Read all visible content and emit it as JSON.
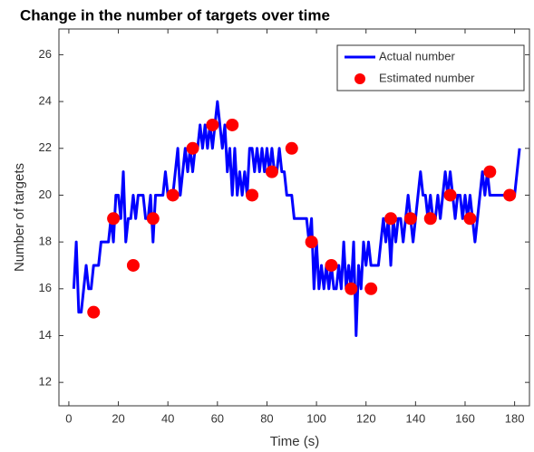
{
  "chart_data": {
    "type": "line",
    "title": "Change in the number of targets over time",
    "xlabel": "Time (s)",
    "ylabel": "Number of targets",
    "xlim": [
      -4,
      186
    ],
    "ylim": [
      11,
      27.1
    ],
    "xticks": [
      0,
      20,
      40,
      60,
      80,
      100,
      120,
      140,
      160,
      180
    ],
    "yticks": [
      12,
      14,
      16,
      18,
      20,
      22,
      24,
      26
    ],
    "grid": false,
    "legend": "upper right",
    "series": [
      {
        "name": "Actual number",
        "color": "#0000ff",
        "style": "line",
        "x": [
          2,
          3,
          4,
          5,
          6,
          7,
          8,
          9,
          10,
          12,
          13,
          16,
          17,
          18,
          19,
          20,
          21,
          22,
          23,
          24,
          25,
          26,
          27,
          28,
          30,
          31,
          32,
          33,
          34,
          35,
          38,
          39,
          40,
          42,
          43,
          44,
          45,
          46,
          47,
          48,
          49,
          50,
          51,
          52,
          53,
          54,
          55,
          56,
          57,
          58,
          59,
          60,
          61,
          62,
          63,
          64,
          65,
          66,
          67,
          68,
          69,
          70,
          71,
          72,
          73,
          74,
          75,
          76,
          77,
          78,
          79,
          80,
          81,
          82,
          83,
          84,
          85,
          86,
          87,
          88,
          89,
          90,
          91,
          92,
          93,
          94,
          95,
          96,
          97,
          98,
          99,
          100,
          101,
          102,
          103,
          104,
          105,
          106,
          107,
          108,
          109,
          110,
          111,
          112,
          113,
          114,
          115,
          116,
          117,
          118,
          119,
          120,
          121,
          122,
          123,
          124,
          125,
          126,
          127,
          128,
          129,
          130,
          131,
          132,
          133,
          134,
          135,
          136,
          137,
          138,
          139,
          140,
          141,
          142,
          143,
          144,
          145,
          146,
          147,
          148,
          149,
          150,
          151,
          152,
          153,
          154,
          155,
          156,
          157,
          158,
          159,
          160,
          161,
          162,
          163,
          164,
          165,
          166,
          167,
          168,
          169,
          170,
          171,
          172,
          173,
          174,
          175,
          176,
          177,
          178,
          179,
          180,
          181,
          182
        ],
        "values": [
          16,
          18,
          15,
          15,
          16,
          17,
          16,
          16,
          17,
          17,
          18,
          18,
          19,
          18,
          20,
          20,
          19,
          21,
          18,
          19,
          19,
          20,
          19,
          20,
          20,
          19,
          19,
          20,
          18,
          20,
          20,
          21,
          20,
          20,
          21,
          22,
          20,
          21,
          22,
          21,
          22,
          21,
          22,
          22,
          23,
          22,
          23,
          22,
          23,
          22,
          23,
          24,
          23,
          22,
          23,
          21,
          22,
          20,
          22,
          20,
          21,
          20,
          21,
          20,
          22,
          22,
          21,
          22,
          21,
          22,
          21,
          22,
          21,
          22,
          21,
          21,
          22,
          21,
          21,
          20,
          20,
          20,
          19,
          19,
          19,
          19,
          19,
          19,
          18,
          19,
          16,
          18,
          16,
          17,
          16,
          17,
          16,
          17,
          16,
          16,
          17,
          16,
          18,
          16,
          17,
          16,
          18,
          14,
          17,
          16,
          18,
          17,
          18,
          17,
          17,
          17,
          17,
          18,
          19,
          18,
          19,
          17,
          19,
          18,
          19,
          19,
          18,
          19,
          20,
          19,
          18,
          19,
          20,
          21,
          20,
          20,
          19,
          20,
          19,
          19,
          20,
          19,
          20,
          21,
          20,
          21,
          20,
          19,
          20,
          20,
          19,
          20,
          19,
          20,
          19,
          18,
          19,
          20,
          21,
          20,
          21,
          20,
          20,
          20,
          20,
          20,
          20,
          20,
          20,
          20,
          20,
          20,
          21,
          22
        ]
      },
      {
        "name": "Estimated number",
        "color": "#ff0000",
        "style": "markers",
        "x": [
          10,
          18,
          26,
          34,
          42,
          50,
          58,
          66,
          74,
          82,
          90,
          98,
          106,
          114,
          122,
          130,
          138,
          146,
          154,
          162,
          170,
          178
        ],
        "values": [
          15,
          19,
          17,
          19,
          20,
          22,
          23,
          23,
          20,
          21,
          22,
          18,
          17,
          16,
          16,
          19,
          19,
          19,
          20,
          19,
          21,
          20
        ]
      }
    ]
  }
}
